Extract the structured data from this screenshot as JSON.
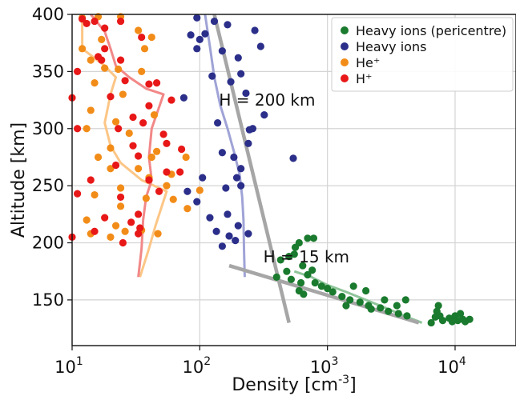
{
  "chart_data": {
    "type": "scatter",
    "xlabel": "Density [cm",
    "xlabel_sup": "-3",
    "xlabel_close": "]",
    "ylabel": "Altitude [km]",
    "xscale": "log",
    "xlim": [
      10,
      30000
    ],
    "ylim": [
      110,
      400
    ],
    "xticks": [
      {
        "value": 10,
        "base": "10",
        "exp": "1"
      },
      {
        "value": 100,
        "base": "10",
        "exp": "2"
      },
      {
        "value": 1000,
        "base": "10",
        "exp": "3"
      },
      {
        "value": 10000,
        "base": "10",
        "exp": "4"
      }
    ],
    "yticks": [
      150,
      200,
      250,
      300,
      350,
      400
    ],
    "grid": true,
    "legend_position": "top-right",
    "annotations": [
      {
        "text": "H = 200 km",
        "x": 450,
        "y": 320
      },
      {
        "text": "H = 15 km",
        "x": 1000,
        "y": 183
      }
    ],
    "series": [
      {
        "name": "Heavy ions (pericentre)",
        "color": "#1a7a2e",
        "points": [
          [
            430,
            185
          ],
          [
            500,
            188
          ],
          [
            560,
            196
          ],
          [
            600,
            200
          ],
          [
            700,
            204
          ],
          [
            780,
            204
          ],
          [
            550,
            190
          ],
          [
            640,
            180
          ],
          [
            480,
            175
          ],
          [
            400,
            170
          ],
          [
            520,
            168
          ],
          [
            620,
            165
          ],
          [
            700,
            172
          ],
          [
            760,
            176
          ],
          [
            900,
            162
          ],
          [
            1100,
            157
          ],
          [
            1300,
            153
          ],
          [
            1500,
            150
          ],
          [
            1800,
            148
          ],
          [
            2100,
            145
          ],
          [
            2600,
            143
          ],
          [
            3000,
            140
          ],
          [
            3600,
            138
          ],
          [
            4200,
            136
          ],
          [
            4100,
            150
          ],
          [
            1600,
            162
          ],
          [
            2000,
            158
          ],
          [
            2800,
            150
          ],
          [
            3500,
            145
          ],
          [
            600,
            158
          ],
          [
            650,
            155
          ],
          [
            800,
            165
          ],
          [
            1000,
            160
          ],
          [
            1400,
            145
          ],
          [
            2200,
            142
          ],
          [
            6500,
            130
          ],
          [
            7000,
            135
          ],
          [
            7200,
            140
          ],
          [
            7400,
            145
          ],
          [
            7600,
            136
          ],
          [
            8000,
            132
          ],
          [
            9000,
            134
          ],
          [
            10000,
            136
          ],
          [
            11000,
            138
          ],
          [
            11500,
            133
          ],
          [
            12000,
            131
          ],
          [
            13000,
            133
          ],
          [
            9500,
            131
          ],
          [
            10500,
            132
          ]
        ]
      },
      {
        "name": "Heavy ions",
        "color": "#2b2f8a",
        "points": [
          [
            95,
            397
          ],
          [
            130,
            394
          ],
          [
            165,
            391
          ],
          [
            150,
            368
          ],
          [
            270,
            386
          ],
          [
            300,
            372
          ],
          [
            85,
            382
          ],
          [
            100,
            378
          ],
          [
            200,
            362
          ],
          [
            210,
            348
          ],
          [
            125,
            346
          ],
          [
            175,
            341
          ],
          [
            230,
            331
          ],
          [
            320,
            312
          ],
          [
            75,
            327
          ],
          [
            138,
            305
          ],
          [
            245,
            299
          ],
          [
            260,
            300
          ],
          [
            540,
            274
          ],
          [
            240,
            287
          ],
          [
            150,
            279
          ],
          [
            185,
            275
          ],
          [
            210,
            265
          ],
          [
            195,
            257
          ],
          [
            105,
            257
          ],
          [
            160,
            248
          ],
          [
            210,
            250
          ],
          [
            80,
            245
          ],
          [
            95,
            236
          ],
          [
            120,
            222
          ],
          [
            165,
            225
          ],
          [
            200,
            215
          ],
          [
            135,
            210
          ],
          [
            170,
            206
          ],
          [
            240,
            208
          ],
          [
            190,
            202
          ],
          [
            150,
            197
          ],
          [
            95,
            370
          ],
          [
            110,
            383
          ]
        ]
      },
      {
        "name": "He⁺",
        "color": "#f28c18",
        "points": [
          [
            12,
            397
          ],
          [
            16,
            398
          ],
          [
            24,
            398
          ],
          [
            12,
            370
          ],
          [
            17,
            378
          ],
          [
            33,
            386
          ],
          [
            42,
            380
          ],
          [
            14,
            360
          ],
          [
            18,
            353
          ],
          [
            23,
            352
          ],
          [
            37,
            370
          ],
          [
            15,
            340
          ],
          [
            25,
            330
          ],
          [
            35,
            350
          ],
          [
            14,
            316
          ],
          [
            22,
            306
          ],
          [
            44,
            312
          ],
          [
            13,
            300
          ],
          [
            28,
            296
          ],
          [
            20,
            283
          ],
          [
            46,
            280
          ],
          [
            78,
            275
          ],
          [
            16,
            275
          ],
          [
            33,
            265
          ],
          [
            20,
            265
          ],
          [
            42,
            275
          ],
          [
            60,
            260
          ],
          [
            24,
            248
          ],
          [
            40,
            257
          ],
          [
            55,
            250
          ],
          [
            100,
            246
          ],
          [
            15,
            242
          ],
          [
            24,
            232
          ],
          [
            38,
            239
          ],
          [
            62,
            238
          ],
          [
            80,
            230
          ],
          [
            13,
            220
          ],
          [
            22,
            215
          ],
          [
            14,
            208
          ],
          [
            20,
            205
          ],
          [
            47,
            208
          ],
          [
            35,
            211
          ],
          [
            26,
            210
          ]
        ]
      },
      {
        "name": "H⁺",
        "color": "#e81818",
        "points": [
          [
            12,
            396
          ],
          [
            15,
            394
          ],
          [
            13,
            392
          ],
          [
            18,
            388
          ],
          [
            24,
            394
          ],
          [
            35,
            380
          ],
          [
            18,
            370
          ],
          [
            11,
            350
          ],
          [
            16,
            363
          ],
          [
            24,
            360
          ],
          [
            26,
            342
          ],
          [
            40,
            339
          ],
          [
            10,
            327
          ],
          [
            20,
            328
          ],
          [
            46,
            340
          ],
          [
            40,
            320
          ],
          [
            60,
            325
          ],
          [
            36,
            305
          ],
          [
            23,
            300
          ],
          [
            11,
            300
          ],
          [
            30,
            285
          ],
          [
            55,
            287
          ],
          [
            33,
            276
          ],
          [
            72,
            282
          ],
          [
            22,
            268
          ],
          [
            14,
            255
          ],
          [
            40,
            255
          ],
          [
            48,
            245
          ],
          [
            24,
            240
          ],
          [
            11,
            243
          ],
          [
            18,
            222
          ],
          [
            33,
            225
          ],
          [
            15,
            210
          ],
          [
            34,
            213
          ],
          [
            33,
            208
          ],
          [
            10,
            205
          ],
          [
            29,
            218
          ],
          [
            25,
            200
          ],
          [
            70,
            262
          ],
          [
            55,
            262
          ],
          [
            52,
            295
          ],
          [
            17,
            360
          ],
          [
            30,
            310
          ]
        ]
      }
    ],
    "profiles": [
      {
        "series": "Heavy ions",
        "color": "#9fa3d6",
        "points": [
          [
            110,
            400
          ],
          [
            120,
            372
          ],
          [
            130,
            345
          ],
          [
            145,
            320
          ],
          [
            165,
            300
          ],
          [
            185,
            280
          ],
          [
            205,
            260
          ],
          [
            215,
            240
          ],
          [
            220,
            220
          ],
          [
            222,
            195
          ],
          [
            225,
            170
          ]
        ]
      },
      {
        "series": "He⁺",
        "color": "#fcc686",
        "points": [
          [
            12,
            395
          ],
          [
            12,
            370
          ],
          [
            18,
            355
          ],
          [
            22,
            345
          ],
          [
            20,
            330
          ],
          [
            18,
            305
          ],
          [
            20,
            285
          ],
          [
            24,
            270
          ],
          [
            35,
            255
          ],
          [
            55,
            245
          ],
          [
            45,
            215
          ],
          [
            40,
            195
          ],
          [
            34,
            170
          ]
        ]
      },
      {
        "series": "H⁺",
        "color": "#f28888",
        "points": [
          [
            14,
            400
          ],
          [
            18,
            385
          ],
          [
            20,
            370
          ],
          [
            22,
            355
          ],
          [
            28,
            345
          ],
          [
            38,
            335
          ],
          [
            52,
            330
          ],
          [
            42,
            300
          ],
          [
            40,
            275
          ],
          [
            42,
            255
          ],
          [
            38,
            240
          ],
          [
            36,
            220
          ],
          [
            35,
            195
          ],
          [
            33,
            170
          ]
        ]
      },
      {
        "series": "Heavy ions (pericentre)",
        "color": "#8fc59a",
        "points": [
          [
            550,
            175
          ],
          [
            750,
            170
          ],
          [
            1000,
            163
          ],
          [
            1400,
            157
          ],
          [
            2000,
            150
          ],
          [
            3000,
            142
          ],
          [
            4000,
            136
          ],
          [
            5500,
            130
          ]
        ]
      }
    ],
    "fits": [
      {
        "label": "H = 200 km",
        "color": "#a6a6a6",
        "points": [
          [
            130,
            400
          ],
          [
            500,
            130
          ]
        ]
      },
      {
        "label": "H = 15 km",
        "color": "#a6a6a6",
        "points": [
          [
            170,
            180
          ],
          [
            5200,
            130
          ]
        ]
      }
    ]
  }
}
